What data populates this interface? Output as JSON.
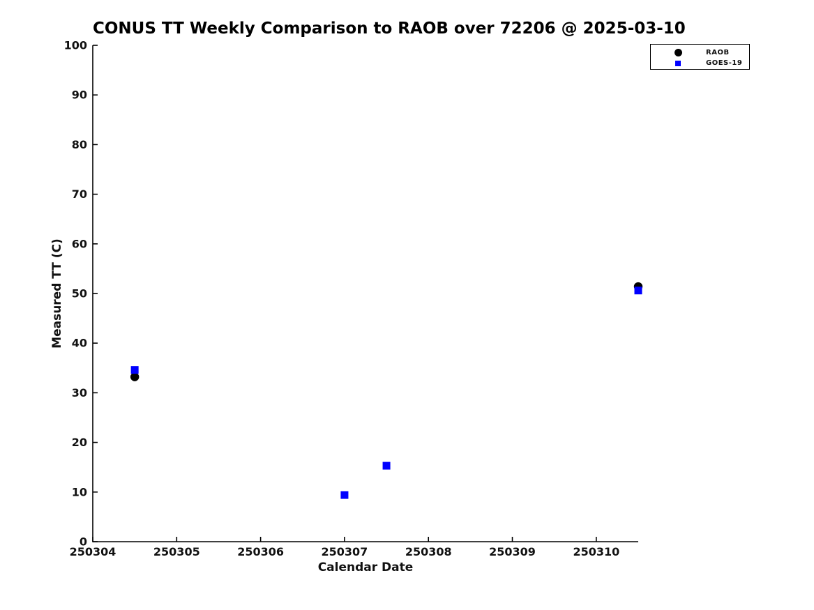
{
  "chart_data": {
    "type": "scatter",
    "title": "CONUS TT Weekly Comparison to RAOB over 72206 @ 2025-03-10",
    "xlabel": "Calendar Date",
    "ylabel": "Measured TT (C)",
    "xlim": [
      250304,
      250310.5
    ],
    "ylim": [
      0,
      100
    ],
    "x_ticks": [
      250304,
      250305,
      250306,
      250307,
      250308,
      250309,
      250310
    ],
    "y_ticks": [
      0,
      10,
      20,
      30,
      40,
      50,
      60,
      70,
      80,
      90,
      100
    ],
    "grid": false,
    "background_color": "#ffffff",
    "axis_color": "#000000",
    "legend_position": "top-right",
    "series": [
      {
        "name": "RAOB",
        "marker": "circle",
        "color": "#000000",
        "points": [
          {
            "x": 250304.5,
            "y": 33.2
          },
          {
            "x": 250310.5,
            "y": 51.4
          }
        ]
      },
      {
        "name": "GOES-19",
        "marker": "square",
        "color": "#0000ff",
        "points": [
          {
            "x": 250304.5,
            "y": 34.6
          },
          {
            "x": 250307.0,
            "y": 9.4
          },
          {
            "x": 250307.5,
            "y": 15.3
          },
          {
            "x": 250310.5,
            "y": 50.6
          }
        ]
      }
    ]
  }
}
